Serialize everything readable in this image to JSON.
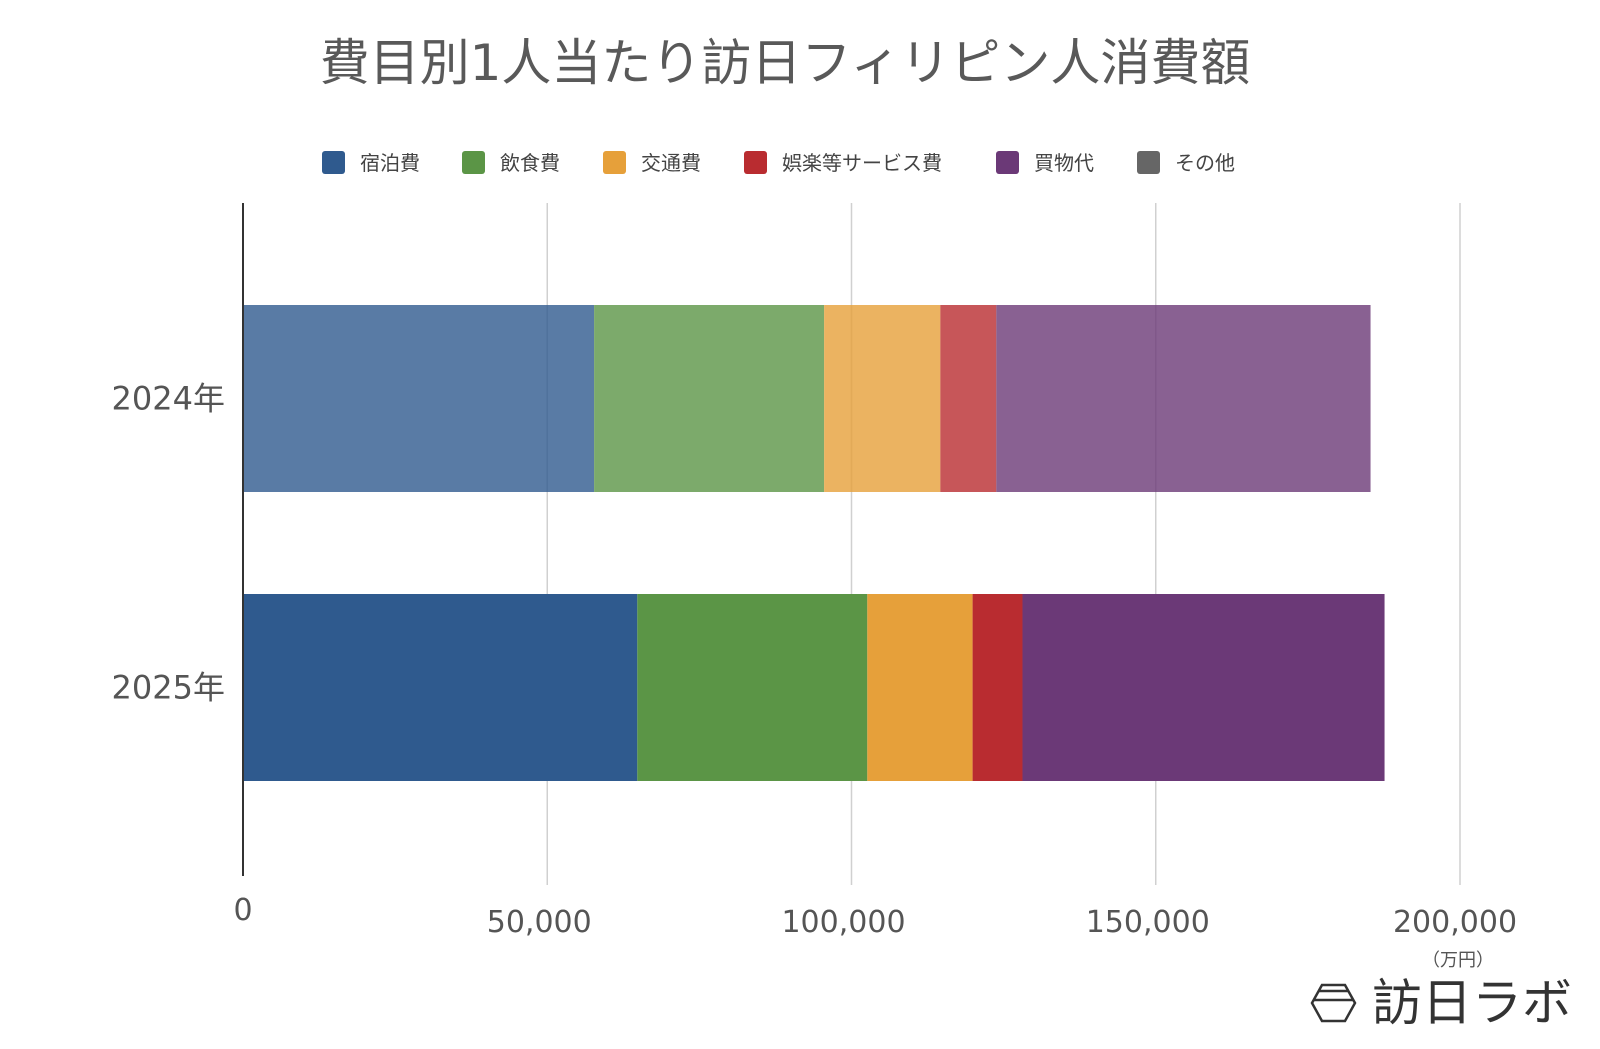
{
  "chart_data": {
    "type": "bar",
    "orientation": "horizontal",
    "stacked": true,
    "title": "費目別1人当たり訪日フィリピン人消費額",
    "categories": [
      "2024年",
      "2025年"
    ],
    "series": [
      {
        "name": "宿泊費",
        "color": "#2f5a8e",
        "values": [
          57700,
          64800
        ]
      },
      {
        "name": "飲食費",
        "color": "#5b9546",
        "values": [
          37800,
          37800
        ]
      },
      {
        "name": "交通費",
        "color": "#e6a03a",
        "values": [
          19100,
          17300
        ]
      },
      {
        "name": "娯楽等サービス費",
        "color": "#b92c30",
        "values": [
          9200,
          8200
        ]
      },
      {
        "name": "買物代",
        "color": "#6b3977",
        "values": [
          61500,
          59500
        ]
      },
      {
        "name": "その他",
        "color": "#666666",
        "values": [
          0,
          0
        ]
      }
    ],
    "xlim": [
      0,
      200000
    ],
    "xticks": [
      "0",
      "50,000",
      "100,000",
      "150,000",
      "200,000"
    ],
    "xunit": "（万円）",
    "faded_category": "2024年",
    "grid": true,
    "legend": "top"
  },
  "logo": {
    "text": "訪日ラボ"
  }
}
